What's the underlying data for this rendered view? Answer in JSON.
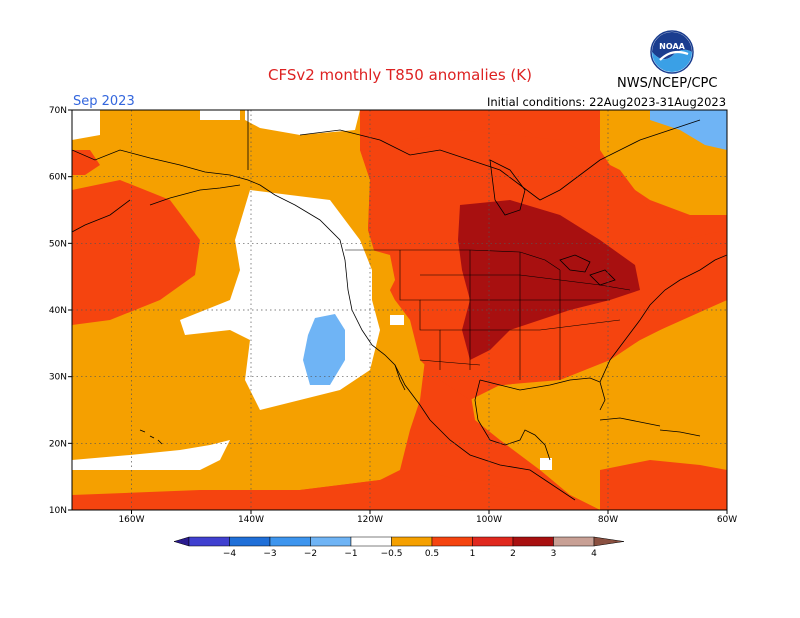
{
  "header": {
    "title": "CFSv2 monthly T850 anomalies (K)",
    "title_color": "#dd2222",
    "month": "Sep 2023",
    "month_color": "#3366dd",
    "initial_conditions": "Initial conditions: 22Aug2023-31Aug2023",
    "agency": "NWS/NCEP/CPC",
    "logo_text": "NOAA"
  },
  "map": {
    "lon_ticks": [
      "160W",
      "140W",
      "120W",
      "100W",
      "80W",
      "60W"
    ],
    "lat_ticks": [
      "70N",
      "60N",
      "50N",
      "40N",
      "30N",
      "20N",
      "10N"
    ],
    "grid": true
  },
  "legend": {
    "labels": [
      "−4",
      "−3",
      "−2",
      "−1",
      "−0.5",
      "0.5",
      "1",
      "2",
      "3",
      "4"
    ],
    "colors": [
      "#2a1b8f",
      "#4040d0",
      "#1f6fd8",
      "#3d95ee",
      "#6fb4f5",
      "#ffffff",
      "#f5a000",
      "#f5440f",
      "#e0281e",
      "#a81010",
      "#c8a095",
      "#8a5040"
    ]
  }
}
